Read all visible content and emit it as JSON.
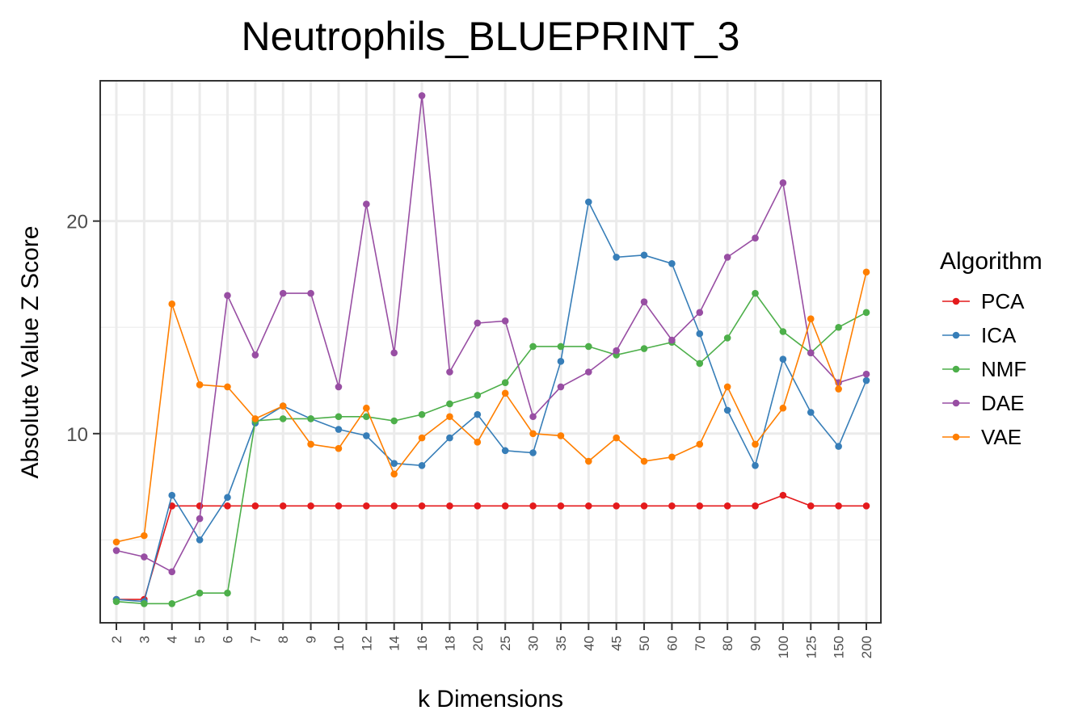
{
  "chart_data": {
    "type": "line",
    "title": "Neutrophils_BLUEPRINT_3",
    "xlabel": "k Dimensions",
    "ylabel": "Absolute Value Z Score",
    "categories": [
      "2",
      "3",
      "4",
      "5",
      "6",
      "7",
      "8",
      "9",
      "10",
      "12",
      "14",
      "16",
      "18",
      "20",
      "25",
      "30",
      "35",
      "40",
      "45",
      "50",
      "60",
      "70",
      "80",
      "90",
      "100",
      "125",
      "150",
      "200"
    ],
    "ylim": [
      1.1,
      26.6
    ],
    "yticks": [
      10,
      20
    ],
    "grid": true,
    "legend": {
      "title": "Algorithm",
      "position": "right"
    },
    "series": [
      {
        "name": "PCA",
        "color": "#E41A1C",
        "values": [
          2.2,
          2.2,
          6.6,
          6.6,
          6.6,
          6.6,
          6.6,
          6.6,
          6.6,
          6.6,
          6.6,
          6.6,
          6.6,
          6.6,
          6.6,
          6.6,
          6.6,
          6.6,
          6.6,
          6.6,
          6.6,
          6.6,
          6.6,
          6.6,
          7.1,
          6.6,
          6.6,
          6.6
        ]
      },
      {
        "name": "ICA",
        "color": "#377EB8",
        "values": [
          2.2,
          2.1,
          7.1,
          5.0,
          7.0,
          10.5,
          11.3,
          10.7,
          10.2,
          9.9,
          8.6,
          8.5,
          9.8,
          10.9,
          9.2,
          9.1,
          13.4,
          20.9,
          18.3,
          18.4,
          18.0,
          14.7,
          11.1,
          8.5,
          13.5,
          11.0,
          9.4,
          12.5
        ]
      },
      {
        "name": "NMF",
        "color": "#4DAF4A",
        "values": [
          2.1,
          2.0,
          2.0,
          2.5,
          2.5,
          10.6,
          10.7,
          10.7,
          10.8,
          10.8,
          10.6,
          10.9,
          11.4,
          11.8,
          12.4,
          14.1,
          14.1,
          14.1,
          13.7,
          14.0,
          14.3,
          13.3,
          14.5,
          16.6,
          14.8,
          13.8,
          15.0,
          15.7
        ]
      },
      {
        "name": "DAE",
        "color": "#984EA3",
        "values": [
          4.5,
          4.2,
          3.5,
          6.0,
          16.5,
          13.7,
          16.6,
          16.6,
          12.2,
          20.8,
          13.8,
          25.9,
          12.9,
          15.2,
          15.3,
          10.8,
          12.2,
          12.9,
          13.9,
          16.2,
          14.4,
          15.7,
          18.3,
          19.2,
          21.8,
          13.8,
          12.4,
          12.8
        ]
      },
      {
        "name": "VAE",
        "color": "#FF7F00",
        "values": [
          4.9,
          5.2,
          16.1,
          12.3,
          12.2,
          10.7,
          11.3,
          9.5,
          9.3,
          11.2,
          8.1,
          9.8,
          10.8,
          9.6,
          11.9,
          10.0,
          9.9,
          8.7,
          9.8,
          8.7,
          8.9,
          9.5,
          12.2,
          9.5,
          11.2,
          15.4,
          12.1,
          17.6
        ]
      }
    ]
  }
}
